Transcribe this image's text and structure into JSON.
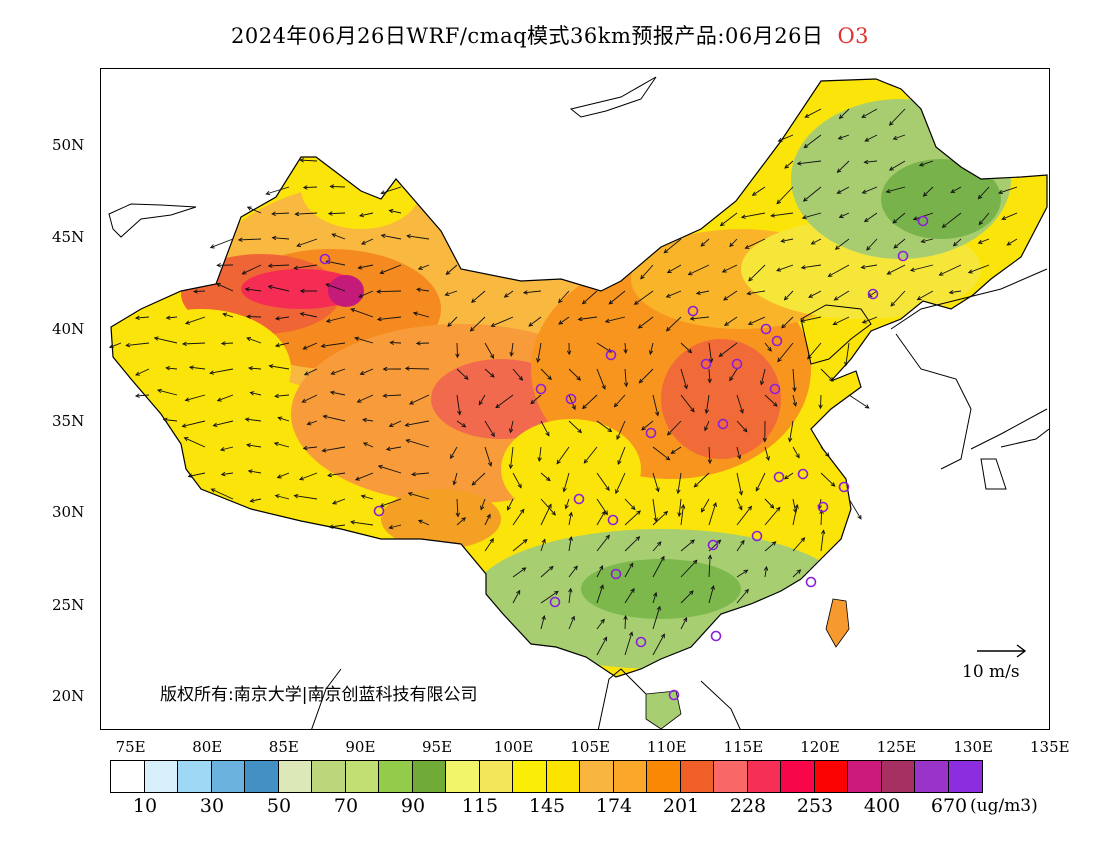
{
  "title": {
    "main": "2024年06月26日WRF/cmaq模式36km预报产品:06月26日",
    "pollutant": "O3"
  },
  "axes": {
    "lat_labels": [
      "50N",
      "45N",
      "40N",
      "35N",
      "30N",
      "25N",
      "20N"
    ],
    "lon_labels": [
      "75E",
      "80E",
      "85E",
      "90E",
      "95E",
      "100E",
      "105E",
      "110E",
      "115E",
      "120E",
      "125E",
      "130E",
      "135E"
    ]
  },
  "copyright": "版权所有:南京大学|南京创蓝科技有限公司",
  "wind_scale": {
    "label": "10 m/s"
  },
  "colorbar": {
    "unit": "(ug/m3)",
    "labels": [
      "10",
      "30",
      "50",
      "70",
      "90",
      "115",
      "145",
      "174",
      "201",
      "228",
      "253",
      "400",
      "670"
    ],
    "colors": [
      "#ffffff",
      "#d7f0fb",
      "#9fd8f4",
      "#6cb2de",
      "#4290c4",
      "#dde8b8",
      "#bcd67c",
      "#c2df74",
      "#93cc4a",
      "#6fab36",
      "#f2f56a",
      "#f4e65a",
      "#fbee06",
      "#fce400",
      "#f8b640",
      "#fba82a",
      "#fb8805",
      "#f05f28",
      "#f96767",
      "#f62f57",
      "#f8064a",
      "#fb0303",
      "#cb1a7c",
      "#a73062",
      "#9a34c9",
      "#8c2ee0"
    ]
  },
  "stations": 34
}
